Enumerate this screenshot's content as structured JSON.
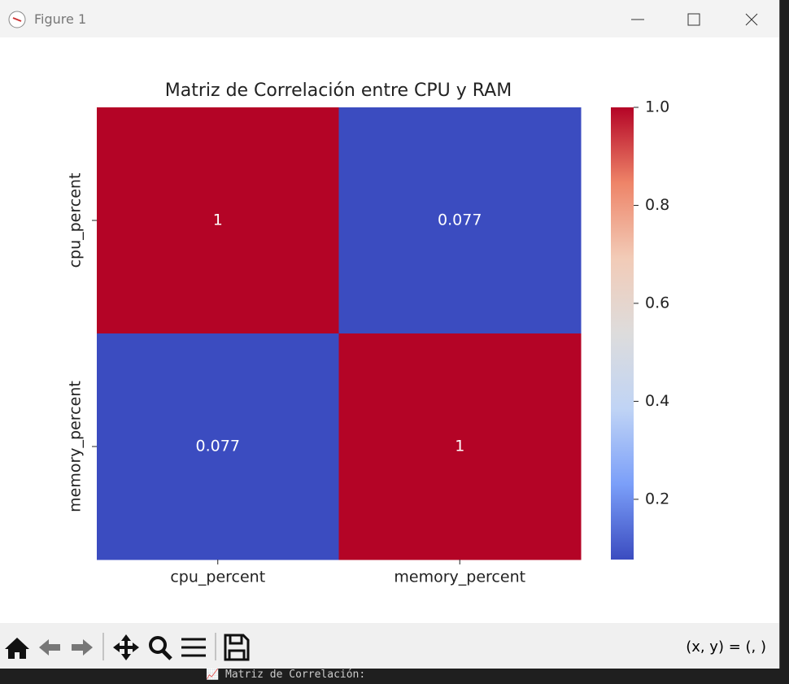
{
  "window": {
    "title": "Figure 1"
  },
  "toolbar": {
    "status": "(x, y) = (, )"
  },
  "background": {
    "terminal_line": "Matriz de Correlación:"
  },
  "chart_data": {
    "type": "heatmap",
    "title": "Matriz de Correlación entre CPU y RAM",
    "x": [
      "cpu_percent",
      "memory_percent"
    ],
    "y": [
      "cpu_percent",
      "memory_percent"
    ],
    "values": [
      [
        1,
        0.077
      ],
      [
        0.077,
        1
      ]
    ],
    "zlim": [
      0.077,
      1
    ],
    "zticks": [
      0.2,
      0.4,
      0.6,
      0.8,
      {
        "value": 1,
        "label": "1.0"
      }
    ],
    "colormap": [
      "#3b4cc0",
      "#7b9ff9",
      "#c0d4f5",
      "#dddcdc",
      "#f2cbb7",
      "#ee8468",
      "#b40426"
    ]
  }
}
